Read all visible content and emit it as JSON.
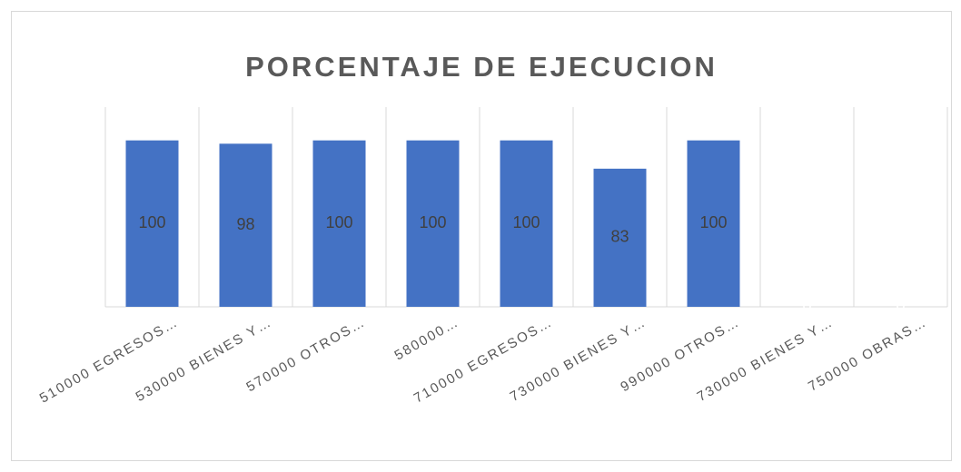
{
  "chart_data": {
    "type": "bar",
    "title": "PORCENTAJE DE EJECUCION",
    "categories": [
      "510000 EGRESOS…",
      "530000 BIENES Y…",
      "570000 OTROS…",
      "580000…",
      "710000 EGRESOS…",
      "730000 BIENES Y…",
      "990000 OTROS…",
      "730000 BIENES Y…",
      "750000 OBRAS…"
    ],
    "values": [
      100,
      98,
      100,
      100,
      100,
      83,
      100,
      0,
      0
    ],
    "color": "#4472c4",
    "ylim": [
      0,
      120
    ]
  }
}
